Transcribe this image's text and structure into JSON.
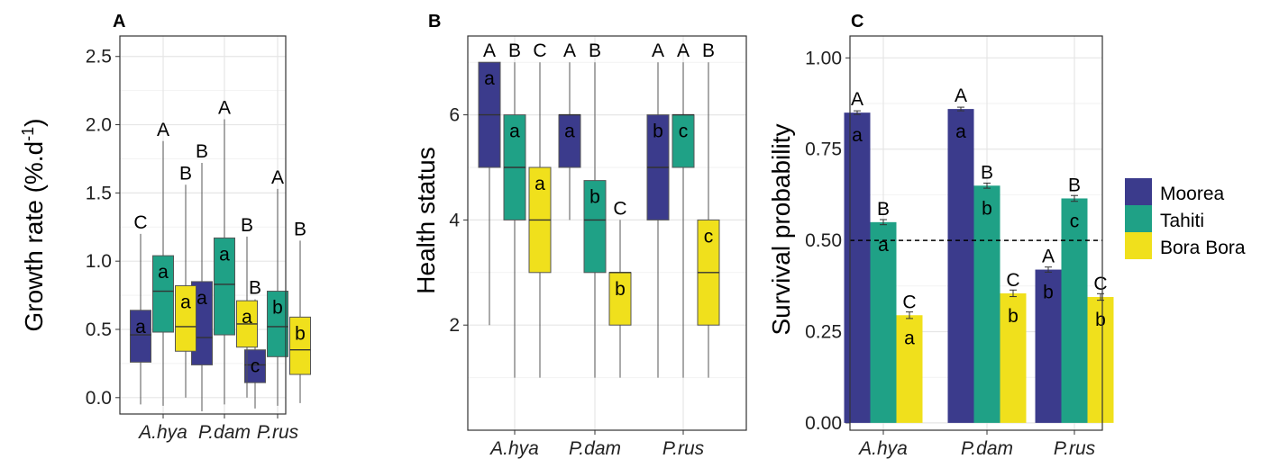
{
  "chart_data": [
    {
      "type": "box",
      "panel": "A",
      "ylabel": "Growth rate (%.d⁻¹)",
      "ylabel_main": "Growth rate (%.d",
      "ylabel_sup": "-1",
      "ylabel_close": ")",
      "ylim": [
        -0.12,
        2.65
      ],
      "yticks": [
        0.0,
        0.5,
        1.0,
        1.5,
        2.0,
        2.5
      ],
      "ytick_labels": [
        "0.0",
        "0.5",
        "1.0",
        "1.5",
        "2.0",
        "2.5"
      ],
      "categories": [
        "A.hya",
        "P.dam",
        "P.rus"
      ],
      "series": [
        {
          "name": "Moorea",
          "color": "#3B3B8C",
          "boxes": [
            {
              "min": -0.05,
              "q1": 0.26,
              "median": 0.46,
              "q3": 0.64,
              "max": 1.2,
              "top_letter": "C",
              "inner_letter": "a"
            },
            {
              "min": -0.1,
              "q1": 0.24,
              "median": 0.44,
              "q3": 0.85,
              "max": 1.72,
              "top_letter": "B",
              "inner_letter": "a"
            },
            {
              "min": -0.08,
              "q1": 0.11,
              "median": 0.24,
              "q3": 0.35,
              "max": 0.72,
              "top_letter": "B",
              "inner_letter": "c"
            }
          ]
        },
        {
          "name": "Tahiti",
          "color": "#1FA186",
          "boxes": [
            {
              "min": -0.06,
              "q1": 0.48,
              "median": 0.78,
              "q3": 1.04,
              "max": 1.88,
              "top_letter": "A",
              "inner_letter": "a"
            },
            {
              "min": -0.05,
              "q1": 0.46,
              "median": 0.83,
              "q3": 1.17,
              "max": 2.04,
              "top_letter": "A",
              "inner_letter": "a"
            },
            {
              "min": -0.06,
              "q1": 0.3,
              "median": 0.52,
              "q3": 0.78,
              "max": 1.53,
              "top_letter": "A",
              "inner_letter": "b"
            }
          ]
        },
        {
          "name": "Bora Bora",
          "color": "#F0E01C",
          "boxes": [
            {
              "min": 0.0,
              "q1": 0.34,
              "median": 0.52,
              "q3": 0.82,
              "max": 1.56,
              "top_letter": "B",
              "inner_letter": "a"
            },
            {
              "min": 0.0,
              "q1": 0.37,
              "median": 0.54,
              "q3": 0.71,
              "max": 1.18,
              "top_letter": "B",
              "inner_letter": "a"
            },
            {
              "min": -0.04,
              "q1": 0.17,
              "median": 0.35,
              "q3": 0.59,
              "max": 1.15,
              "top_letter": "B",
              "inner_letter": "b"
            }
          ]
        }
      ]
    },
    {
      "type": "box",
      "panel": "B",
      "ylabel": "Health status",
      "ylim": [
        0.0,
        7.5
      ],
      "yticks": [
        2,
        4,
        6
      ],
      "ytick_labels": [
        "2",
        "4",
        "6"
      ],
      "categories": [
        "A.hya",
        "P.dam",
        "P.rus"
      ],
      "series": [
        {
          "name": "Moorea",
          "color": "#3B3B8C",
          "boxes": [
            {
              "min": 2,
              "q1": 5,
              "median": 6,
              "q3": 7,
              "max": 7,
              "top_letter": "A",
              "inner_letter": "a"
            },
            {
              "min": 4,
              "q1": 5,
              "median": 6,
              "q3": 6,
              "max": 7,
              "top_letter": "A",
              "inner_letter": "a"
            },
            {
              "min": 1,
              "q1": 4,
              "median": 5,
              "q3": 6,
              "max": 7,
              "top_letter": "A",
              "inner_letter": "b"
            }
          ]
        },
        {
          "name": "Tahiti",
          "color": "#1FA186",
          "boxes": [
            {
              "min": 1,
              "q1": 4,
              "median": 5,
              "q3": 6,
              "max": 7,
              "top_letter": "B",
              "inner_letter": "a"
            },
            {
              "min": 1,
              "q1": 3,
              "median": 4,
              "q3": 4.75,
              "max": 7,
              "top_letter": "B",
              "inner_letter": "b"
            },
            {
              "min": 1,
              "q1": 5,
              "median": 6,
              "q3": 6,
              "max": 7,
              "top_letter": "A",
              "inner_letter": "c"
            }
          ]
        },
        {
          "name": "Bora Bora",
          "color": "#F0E01C",
          "boxes": [
            {
              "min": 1,
              "q1": 3,
              "median": 4,
              "q3": 5,
              "max": 7,
              "top_letter": "C",
              "inner_letter": "a"
            },
            {
              "min": 1,
              "q1": 2,
              "median": 3,
              "q3": 3,
              "max": 4,
              "top_letter": "C",
              "inner_letter": "b"
            },
            {
              "min": 1,
              "q1": 2,
              "median": 3,
              "q3": 4,
              "max": 7,
              "top_letter": "B",
              "inner_letter": "c"
            }
          ]
        }
      ]
    },
    {
      "type": "bar",
      "panel": "C",
      "ylabel": "Survival probability",
      "ylim": [
        -0.02,
        1.06
      ],
      "yticks": [
        0.0,
        0.25,
        0.5,
        0.75,
        1.0
      ],
      "ytick_labels": [
        "0.00",
        "0.25",
        "0.50",
        "0.75",
        "1.00"
      ],
      "reference_line": 0.5,
      "categories": [
        "A.hya",
        "P.dam",
        "P.rus"
      ],
      "series": [
        {
          "name": "Moorea",
          "color": "#3B3B8C",
          "values": [
            0.85,
            0.86,
            0.42
          ],
          "errors": [
            0.005,
            0.005,
            0.007
          ],
          "top_letters": [
            "A",
            "A",
            "A"
          ],
          "inner_letters": [
            "a",
            "a",
            "b"
          ]
        },
        {
          "name": "Tahiti",
          "color": "#1FA186",
          "values": [
            0.55,
            0.65,
            0.615
          ],
          "errors": [
            0.007,
            0.007,
            0.008
          ],
          "top_letters": [
            "B",
            "B",
            "B"
          ],
          "inner_letters": [
            "a",
            "b",
            "c"
          ]
        },
        {
          "name": "Bora Bora",
          "color": "#F0E01C",
          "values": [
            0.295,
            0.355,
            0.345
          ],
          "errors": [
            0.009,
            0.009,
            0.009
          ],
          "top_letters": [
            "C",
            "C",
            "C"
          ],
          "inner_letters": [
            "a",
            "b",
            "b"
          ]
        }
      ]
    }
  ],
  "legend": {
    "items": [
      {
        "label": "Moorea",
        "color": "#3B3B8C"
      },
      {
        "label": "Tahiti",
        "color": "#1FA186"
      },
      {
        "label": "Bora Bora",
        "color": "#F0E01C"
      }
    ]
  }
}
